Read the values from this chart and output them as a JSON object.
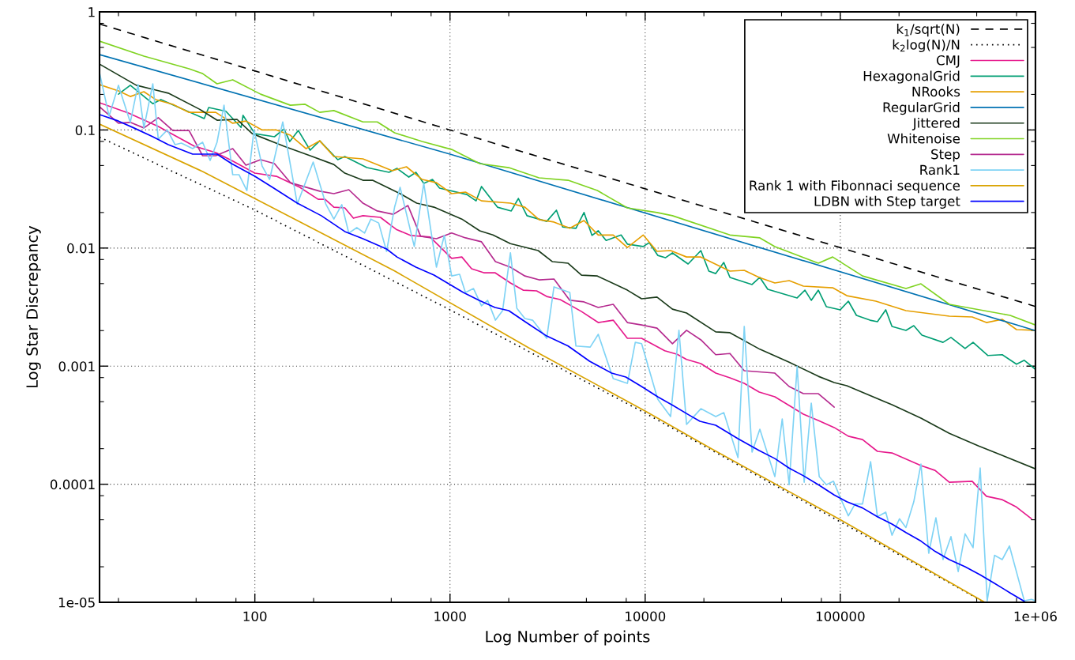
{
  "chart_data": {
    "type": "line",
    "xlabel": "Log Number of points",
    "ylabel": "Log Star Discrepancy",
    "log": "xy",
    "grid": true,
    "legend": "top right",
    "xlim": [
      16,
      1000000
    ],
    "ylim": [
      1e-05,
      1
    ],
    "xticks": [
      {
        "value": 20,
        "label": null
      },
      {
        "value": 50,
        "label": null
      },
      {
        "value": 80,
        "label": null
      },
      100,
      {
        "value": 200,
        "label": null
      },
      {
        "value": 500,
        "label": null
      },
      {
        "value": 800,
        "label": null
      },
      1000,
      {
        "value": 2000,
        "label": null
      },
      {
        "value": 5000,
        "label": null
      },
      {
        "value": 8000,
        "label": null
      },
      10000,
      {
        "value": 20000,
        "label": null
      },
      {
        "value": 50000,
        "label": null
      },
      {
        "value": 80000,
        "label": null
      },
      100000,
      {
        "value": 200000,
        "label": null
      },
      {
        "value": 500000,
        "label": null
      },
      {
        "value": 800000,
        "label": null
      },
      {
        "value": 1000000,
        "label": "1e+06"
      }
    ],
    "yticks": [
      {
        "value": 1e-05,
        "label": "1e-05"
      },
      {
        "value": 2e-05,
        "label": null
      },
      {
        "value": 5e-05,
        "label": null
      },
      {
        "value": 8e-05,
        "label": null
      },
      {
        "value": 0.0001,
        "label": "0.0001"
      },
      {
        "value": 0.0002,
        "label": null
      },
      {
        "value": 0.0005,
        "label": null
      },
      {
        "value": 0.0008,
        "label": null
      },
      {
        "value": 0.001,
        "label": "0.001"
      },
      {
        "value": 0.002,
        "label": null
      },
      {
        "value": 0.005,
        "label": null
      },
      {
        "value": 0.008,
        "label": null
      },
      {
        "value": 0.01,
        "label": "0.01"
      },
      {
        "value": 0.02,
        "label": null
      },
      {
        "value": 0.05,
        "label": null
      },
      {
        "value": 0.08,
        "label": null
      },
      {
        "value": 0.1,
        "label": "0.1"
      },
      {
        "value": 0.2,
        "label": null
      },
      {
        "value": 0.5,
        "label": null
      },
      {
        "value": 0.8,
        "label": null
      },
      {
        "value": 1,
        "label": "1"
      }
    ],
    "series": [
      {
        "name": "k$_{1}$/sqrt(N)",
        "color": "#000000",
        "line_style": "dashed",
        "x": [
          16,
          1000,
          1000000
        ],
        "values": [
          0.79,
          0.1,
          0.0032
        ]
      },
      {
        "name": "k$_{2}$log(N)/N",
        "color": "#000000",
        "line_style": "dotted",
        "x": [
          16,
          100,
          1000,
          10000,
          100000,
          546000
        ],
        "values": [
          0.087,
          0.021,
          0.003,
          0.0004,
          4.8e-05,
          1e-05
        ]
      },
      {
        "name": "CMJ",
        "color": "#e6198c",
        "x": [
          16,
          22.5,
          32,
          49,
          63,
          76,
          100,
          129,
          170,
          211,
          229,
          254,
          289,
          320,
          358,
          440,
          530,
          627,
          791,
          1020,
          1150,
          1290,
          1490,
          1700,
          2040,
          2370,
          2780,
          3130,
          3670,
          4720,
          5750,
          6860,
          8110,
          9590,
          12600,
          14600,
          16300,
          19300,
          23000,
          27200,
          32200,
          38400,
          46200,
          54700,
          64700,
          77200,
          93100,
          110000,
          130000,
          155000,
          184000,
          259000,
          306000,
          362000,
          474000,
          561000,
          676000,
          800000,
          955000
        ],
        "values": [
          0.17,
          0.139,
          0.107,
          0.0728,
          0.0644,
          0.0552,
          0.0431,
          0.0405,
          0.0327,
          0.0259,
          0.0259,
          0.0222,
          0.0219,
          0.0179,
          0.0188,
          0.0182,
          0.0144,
          0.0128,
          0.0124,
          0.00817,
          0.0084,
          0.00668,
          0.00618,
          0.00618,
          0.00506,
          0.0044,
          0.00434,
          0.00389,
          0.00366,
          0.0029,
          0.00234,
          0.00245,
          0.00172,
          0.00172,
          0.00135,
          0.00126,
          0.00114,
          0.00105,
          0.000873,
          0.000796,
          0.000714,
          0.000603,
          0.00055,
          0.000464,
          0.000392,
          0.000347,
          0.000302,
          0.000255,
          0.000239,
          0.00019,
          0.000184,
          0.000144,
          0.000131,
          0.000104,
          0.000106,
          7.9e-05,
          7.4e-05,
          6.4e-05,
          5.1e-05
        ]
      },
      {
        "name": "HexagonalGrid",
        "color": "#009e73",
        "x": [
          20,
          23,
          30,
          33,
          55,
          58,
          71,
          85,
          87,
          100,
          126,
          141,
          151,
          167,
          192,
          215,
          266,
          289,
          375,
          487,
          535,
          615,
          669,
          734,
          813,
          884,
          1220,
          1360,
          1450,
          1750,
          2060,
          2240,
          2480,
          3130,
          3510,
          3780,
          4420,
          4860,
          5340,
          5750,
          6310,
          7530,
          8110,
          9770,
          10500,
          11600,
          12700,
          13800,
          16600,
          19300,
          21200,
          23000,
          25300,
          27200,
          35300,
          38700,
          42500,
          60100,
          65900,
          71000,
          77200,
          84800,
          100000,
          110000,
          121000,
          142000,
          155000,
          171000,
          184000,
          217000,
          238000,
          262000,
          336000,
          369000,
          436000,
          479000,
          571000,
          676000,
          800000,
          877000,
          1000000
        ],
        "values": [
          0.201,
          0.239,
          0.167,
          0.181,
          0.125,
          0.155,
          0.144,
          0.105,
          0.133,
          0.093,
          0.0876,
          0.102,
          0.0798,
          0.099,
          0.0674,
          0.081,
          0.056,
          0.0596,
          0.048,
          0.0438,
          0.0473,
          0.0399,
          0.0438,
          0.0353,
          0.0381,
          0.0322,
          0.0284,
          0.0251,
          0.0332,
          0.0222,
          0.0206,
          0.0263,
          0.0188,
          0.0168,
          0.0209,
          0.0151,
          0.0147,
          0.02,
          0.0128,
          0.014,
          0.0116,
          0.0129,
          0.0108,
          0.0103,
          0.0111,
          0.00867,
          0.00828,
          0.0091,
          0.00733,
          0.00952,
          0.00638,
          0.00608,
          0.00755,
          0.00564,
          0.00491,
          0.00564,
          0.00448,
          0.00378,
          0.0044,
          0.00361,
          0.0044,
          0.00319,
          0.003,
          0.00355,
          0.00269,
          0.00245,
          0.00238,
          0.003,
          0.00217,
          0.00201,
          0.0022,
          0.00183,
          0.00159,
          0.00175,
          0.00141,
          0.00159,
          0.00123,
          0.00125,
          0.00104,
          0.00112,
          0.00094
        ]
      },
      {
        "name": "NRooks",
        "color": "#e69f00",
        "x": [
          16,
          20,
          23,
          27,
          31,
          38,
          46,
          63,
          77,
          90,
          109,
          129,
          152,
          183,
          215,
          254,
          358,
          431,
          506,
          598,
          720,
          852,
          1020,
          1200,
          1450,
          2040,
          2420,
          2860,
          3410,
          4110,
          4860,
          5750,
          6860,
          8110,
          9770,
          11500,
          13500,
          16300,
          19300,
          27200,
          32200,
          38400,
          46200,
          54700,
          64700,
          91400,
          108000,
          152000,
          217000,
          362000,
          474000,
          561000,
          676000,
          800000,
          1000000
        ],
        "values": [
          0.242,
          0.214,
          0.192,
          0.211,
          0.181,
          0.165,
          0.141,
          0.141,
          0.114,
          0.119,
          0.1,
          0.1,
          0.0903,
          0.0695,
          0.081,
          0.0596,
          0.0569,
          0.0503,
          0.0452,
          0.0488,
          0.0381,
          0.0358,
          0.0289,
          0.0298,
          0.0251,
          0.024,
          0.0222,
          0.0174,
          0.0166,
          0.0147,
          0.0171,
          0.0129,
          0.0129,
          0.0101,
          0.0129,
          0.00938,
          0.00952,
          0.0084,
          0.0084,
          0.00638,
          0.00648,
          0.00564,
          0.00506,
          0.0053,
          0.00476,
          0.00461,
          0.00395,
          0.00355,
          0.00295,
          0.00265,
          0.00261,
          0.00234,
          0.00249,
          0.00204,
          0.00201
        ]
      },
      {
        "name": "RegularGrid",
        "color": "#0072b2",
        "x": [
          16,
          1000,
          1000000
        ],
        "values": [
          0.435,
          0.0624,
          0.002
        ]
      },
      {
        "name": "Jittered",
        "color": "#1a3a1a",
        "x": [
          16,
          24.7,
          30,
          36,
          52,
          64,
          81,
          97,
          141,
          192,
          254,
          289,
          358,
          401,
          555,
          675,
          828,
          1150,
          1420,
          1660,
          2040,
          2830,
          3350,
          4030,
          4720,
          5690,
          8110,
          9590,
          11500,
          13800,
          16300,
          23000,
          27200,
          38700,
          54700,
          77200,
          93100,
          108000,
          184000,
          259000,
          362000,
          512000,
          1000000
        ],
        "values": [
          0.361,
          0.239,
          0.221,
          0.205,
          0.15,
          0.121,
          0.123,
          0.093,
          0.0728,
          0.0605,
          0.051,
          0.0431,
          0.0375,
          0.0375,
          0.0289,
          0.024,
          0.0222,
          0.0176,
          0.014,
          0.0129,
          0.0109,
          0.00952,
          0.00767,
          0.00744,
          0.0059,
          0.0058,
          0.0044,
          0.00372,
          0.00384,
          0.00304,
          0.00282,
          0.00195,
          0.00192,
          0.00139,
          0.00108,
          0.00082,
          0.000726,
          0.000682,
          0.000471,
          0.000363,
          0.00027,
          0.000211,
          0.000135
        ]
      },
      {
        "name": "Whitenoise",
        "color": "#7fd321",
        "x": [
          16,
          27,
          46,
          54,
          64,
          77,
          107,
          152,
          181,
          215,
          254,
          358,
          424,
          520,
          720,
          1020,
          1420,
          2000,
          2860,
          4030,
          5690,
          8100,
          11500,
          13800,
          27200,
          38700,
          46200,
          77200,
          91400,
          130000,
          217000,
          259000,
          362000,
          742000,
          1000000
        ],
        "values": [
          0.565,
          0.422,
          0.33,
          0.3,
          0.246,
          0.266,
          0.201,
          0.162,
          0.165,
          0.141,
          0.146,
          0.117,
          0.117,
          0.0946,
          0.0798,
          0.0684,
          0.0519,
          0.048,
          0.0393,
          0.0375,
          0.0307,
          0.0219,
          0.02,
          0.0188,
          0.0129,
          0.0122,
          0.0103,
          0.00744,
          0.0084,
          0.0058,
          0.00454,
          0.00498,
          0.00334,
          0.00269,
          0.00223
        ]
      },
      {
        "name": "Step",
        "color": "#b52a8f",
        "x": [
          16,
          20,
          23,
          27,
          32,
          38,
          46,
          54,
          63,
          77,
          90,
          107,
          126,
          152,
          215,
          254,
          303,
          358,
          424,
          511,
          609,
          707,
          852,
          1020,
          1200,
          1450,
          1710,
          2040,
          2420,
          2860,
          3410,
          4110,
          4860,
          5750,
          6860,
          8110,
          9590,
          11500,
          13800,
          16300,
          19300,
          23000,
          27200,
          32200,
          46200,
          54700,
          64700,
          77200,
          93100
        ],
        "values": [
          0.157,
          0.114,
          0.116,
          0.104,
          0.127,
          0.099,
          0.099,
          0.0605,
          0.0605,
          0.0695,
          0.0503,
          0.056,
          0.0519,
          0.0358,
          0.0303,
          0.0289,
          0.0312,
          0.024,
          0.0206,
          0.0193,
          0.0229,
          0.0126,
          0.012,
          0.0134,
          0.0122,
          0.0113,
          0.00767,
          0.00689,
          0.0058,
          0.00538,
          0.00547,
          0.00361,
          0.0035,
          0.00314,
          0.00334,
          0.00234,
          0.00223,
          0.0021,
          0.00155,
          0.00201,
          0.00167,
          0.00125,
          0.00128,
          0.000915,
          0.000873,
          0.000672,
          0.000585,
          0.000585,
          0.00045
        ]
      },
      {
        "name": "Rank1",
        "color": "#7fd3f5",
        "x": [
          16,
          17.9,
          20,
          23,
          25.2,
          27,
          30,
          32,
          35.6,
          39,
          42,
          48,
          54,
          59,
          64,
          69.5,
          77,
          83,
          91,
          99,
          109,
          119,
          139,
          165,
          199,
          231,
          254,
          279,
          303,
          333,
          365,
          393,
          431,
          473,
          520,
          555,
          656,
          734,
          852,
          935,
          1020,
          1120,
          1200,
          1320,
          1450,
          1560,
          1710,
          1860,
          2040,
          2200,
          2420,
          2650,
          3130,
          3410,
          4110,
          4420,
          5230,
          5750,
          6860,
          8110,
          8900,
          9590,
          11600,
          13500,
          14900,
          16300,
          19300,
          23000,
          25300,
          29900,
          32200,
          35300,
          38700,
          46200,
          50400,
          54700,
          60100,
          65300,
          71000,
          78000,
          84800,
          92300,
          100000,
          110000,
          119000,
          130000,
          143000,
          155000,
          171000,
          184000,
          201000,
          217000,
          238000,
          259000,
          284000,
          309000,
          336000,
          369000,
          402000,
          436000,
          479000,
          521000,
          566000,
          617000,
          676000,
          736000,
          877000,
          955000,
          1000000
        ],
        "values": [
          0.305,
          0.131,
          0.239,
          0.116,
          0.242,
          0.104,
          0.246,
          0.0836,
          0.1,
          0.0751,
          0.0774,
          0.0695,
          0.0787,
          0.0552,
          0.0787,
          0.162,
          0.0418,
          0.0418,
          0.0307,
          0.1,
          0.0495,
          0.0381,
          0.117,
          0.0236,
          0.0535,
          0.0236,
          0.0176,
          0.0233,
          0.0134,
          0.0149,
          0.0134,
          0.0176,
          0.0163,
          0.00938,
          0.0222,
          0.0327,
          0.0103,
          0.0353,
          0.00689,
          0.0128,
          0.0058,
          0.006,
          0.00421,
          0.00454,
          0.00324,
          0.00361,
          0.00245,
          0.00295,
          0.0091,
          0.00309,
          0.00253,
          0.00245,
          0.00172,
          0.00469,
          0.00421,
          0.00148,
          0.00145,
          0.00186,
          0.000784,
          0.000714,
          0.00159,
          0.00155,
          0.000525,
          0.000374,
          0.00201,
          0.000321,
          0.000436,
          0.000374,
          0.000404,
          0.000168,
          0.00217,
          0.000187,
          0.000292,
          0.000116,
          0.000357,
          9.9e-05,
          0.001,
          0.000104,
          0.000486,
          0.000116,
          9.9e-05,
          0.000106,
          7.7e-05,
          5.4e-05,
          6.8e-05,
          6.8e-05,
          0.000155,
          5.3e-05,
          5.8e-05,
          3.7e-05,
          5.1e-05,
          4.3e-05,
          7.1e-05,
          0.000148,
          2.6e-05,
          5.2e-05,
          2.3e-05,
          3.6e-05,
          1.82e-05,
          3.8e-05,
          2.9e-05,
          0.000137,
          1.03e-05,
          2.5e-05,
          2.3e-05,
          3e-05,
          1.03e-05,
          1.06e-05,
          1.03e-05
        ]
      },
      {
        "name": "Rank 1 with Fibonnaci sequence",
        "color": "#d9a300",
        "x": [
          16,
          54,
          520,
          2530,
          10000,
          21600,
          100000,
          550000
        ],
        "values": [
          0.112,
          0.0445,
          0.0064,
          0.00143,
          0.000417,
          0.000202,
          5e-05,
          1e-05
        ]
      },
      {
        "name": "LDBN with Step target",
        "color": "#0000ff",
        "x": [
          16,
          20,
          24,
          30,
          36,
          48,
          64,
          76,
          100,
          125,
          165,
          219,
          289,
          358,
          473,
          535,
          669,
          828,
          1000,
          1170,
          1410,
          1700,
          2000,
          2460,
          3130,
          4030,
          5190,
          6730,
          7960,
          9590,
          11600,
          13900,
          16800,
          19100,
          23000,
          29900,
          38400,
          46200,
          54700,
          64700,
          77200,
          93100,
          108000,
          130000,
          155000,
          184000,
          217000,
          259000,
          306000,
          362000,
          436000,
          521000,
          617000,
          743000,
          877000
        ],
        "values": [
          0.135,
          0.119,
          0.104,
          0.0876,
          0.0751,
          0.0624,
          0.0624,
          0.0519,
          0.0405,
          0.0322,
          0.024,
          0.0188,
          0.0138,
          0.012,
          0.00982,
          0.0084,
          0.00689,
          0.0059,
          0.00491,
          0.00421,
          0.00361,
          0.00314,
          0.00295,
          0.00234,
          0.0018,
          0.00148,
          0.0011,
          0.000873,
          0.000809,
          0.000672,
          0.00055,
          0.000464,
          0.000385,
          0.000341,
          0.000316,
          0.000243,
          0.000193,
          0.000165,
          0.000137,
          0.000118,
          9.9e-05,
          8.1e-05,
          7.1e-05,
          6.3e-05,
          5.3e-05,
          4.6e-05,
          3.9e-05,
          3.3e-05,
          2.7e-05,
          2.3e-05,
          2e-05,
          1.71e-05,
          1.45e-05,
          1.2e-05,
          1.02e-05
        ]
      }
    ]
  }
}
